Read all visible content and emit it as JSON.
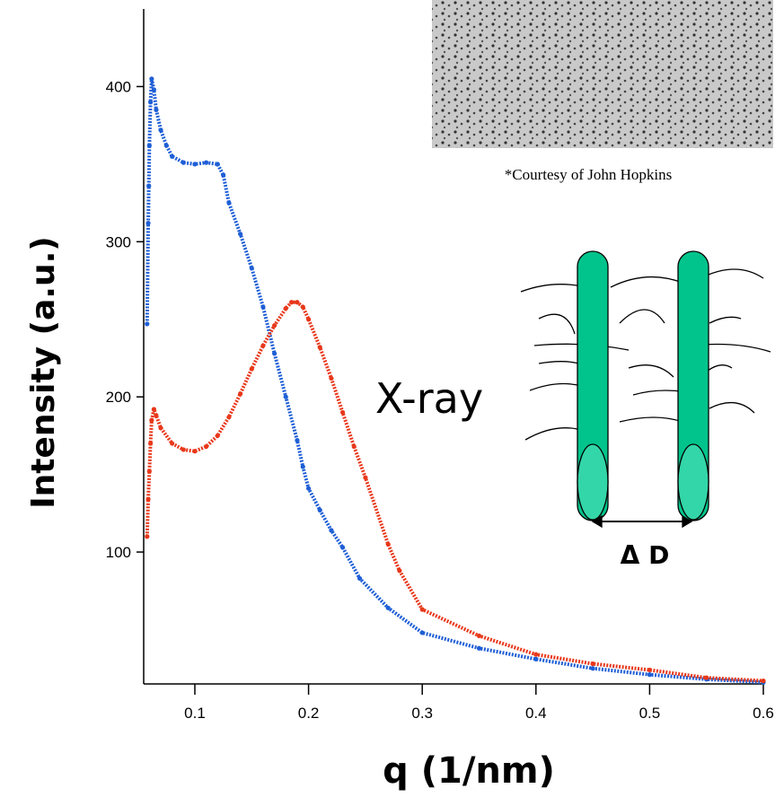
{
  "chart_data": {
    "type": "scatter",
    "xlabel": "q (1/nm)",
    "ylabel": "Intensity (a.u.)",
    "annotations": [
      "*Courtesy of John Hopkins",
      "X-ray",
      "Δ D"
    ],
    "xlim": [
      0.055,
      0.6
    ],
    "ylim": [
      15,
      450
    ],
    "xticks": [
      0.1,
      0.2,
      0.3,
      0.4,
      0.5,
      0.6
    ],
    "yticks": [
      100,
      200,
      300,
      400
    ],
    "series": [
      {
        "color": "#1f5fd6",
        "x": [
          0.058,
          0.059,
          0.0595,
          0.06,
          0.061,
          0.062,
          0.064,
          0.066,
          0.07,
          0.075,
          0.08,
          0.09,
          0.1,
          0.11,
          0.12,
          0.125,
          0.13,
          0.14,
          0.15,
          0.16,
          0.17,
          0.18,
          0.19,
          0.195,
          0.2,
          0.21,
          0.22,
          0.23,
          0.245,
          0.27,
          0.3,
          0.35,
          0.4,
          0.45,
          0.5,
          0.55,
          0.6
        ],
        "values": [
          247,
          312,
          336,
          362,
          390,
          405,
          398,
          385,
          372,
          362,
          355,
          351,
          350,
          351,
          350,
          343,
          325,
          305,
          283,
          258,
          228,
          200,
          172,
          155,
          141,
          127,
          114,
          103,
          83,
          64,
          48,
          38,
          31,
          25,
          21,
          18,
          16
        ]
      },
      {
        "color": "#e8381a",
        "x": [
          0.058,
          0.059,
          0.06,
          0.061,
          0.062,
          0.064,
          0.066,
          0.07,
          0.08,
          0.09,
          0.1,
          0.11,
          0.12,
          0.13,
          0.14,
          0.15,
          0.16,
          0.17,
          0.18,
          0.185,
          0.19,
          0.195,
          0.2,
          0.21,
          0.22,
          0.23,
          0.24,
          0.25,
          0.27,
          0.28,
          0.3,
          0.35,
          0.4,
          0.45,
          0.5,
          0.55,
          0.6
        ],
        "values": [
          110,
          134,
          152,
          170,
          185,
          192,
          188,
          180,
          170,
          166,
          165,
          168,
          175,
          187,
          202,
          218,
          233,
          246,
          257,
          261,
          261,
          258,
          250,
          232,
          212,
          190,
          168,
          148,
          105,
          88,
          63,
          46,
          34,
          28,
          24,
          19,
          17
        ]
      }
    ]
  }
}
